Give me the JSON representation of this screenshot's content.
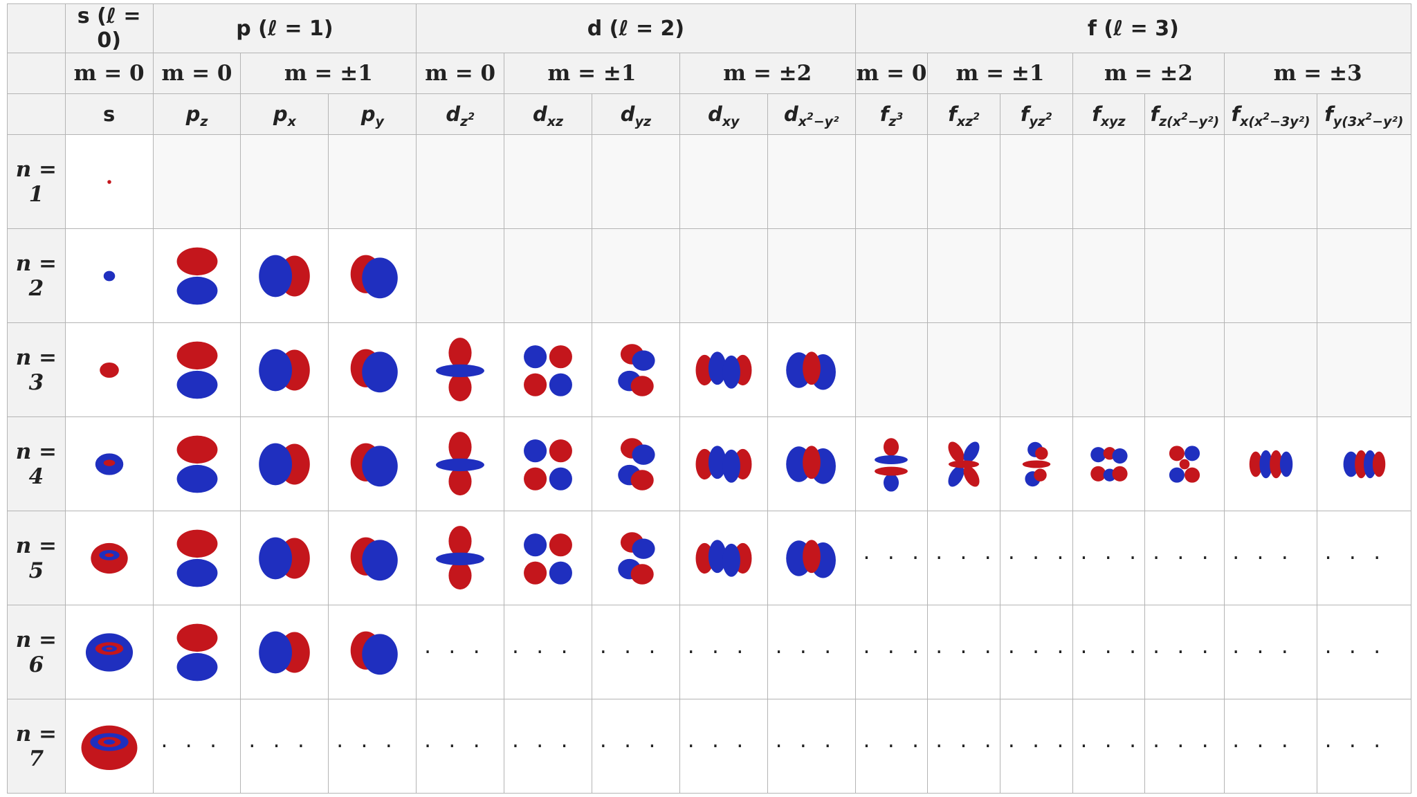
{
  "l_headers": [
    {
      "label": "s (ℓ = 0)",
      "span": 1
    },
    {
      "label": "p (ℓ = 1)",
      "span": 3
    },
    {
      "label": "d (ℓ = 2)",
      "span": 5
    },
    {
      "label": "f (ℓ = 3)",
      "span": 7
    }
  ],
  "m_headers": [
    {
      "label": "m = 0",
      "span": 1
    },
    {
      "label": "m = 0",
      "span": 1
    },
    {
      "label": "m = ±1",
      "span": 2
    },
    {
      "label": "m = 0",
      "span": 1
    },
    {
      "label": "m = ±1",
      "span": 2
    },
    {
      "label": "m = ±2",
      "span": 2
    },
    {
      "label": "m = 0",
      "span": 1
    },
    {
      "label": "m = ±1",
      "span": 2
    },
    {
      "label": "m = ±2",
      "span": 2
    },
    {
      "label": "m = ±3",
      "span": 2
    }
  ],
  "orbital_headers": [
    {
      "main": "s",
      "sub": "",
      "sup": "",
      "sub2": ""
    },
    {
      "main": "p",
      "sub": "z",
      "sup": "",
      "sub2": ""
    },
    {
      "main": "p",
      "sub": "x",
      "sup": "",
      "sub2": ""
    },
    {
      "main": "p",
      "sub": "y",
      "sup": "",
      "sub2": ""
    },
    {
      "main": "d",
      "sub": "z",
      "sup": "2",
      "sub2": ""
    },
    {
      "main": "d",
      "sub": "xz",
      "sup": "",
      "sub2": ""
    },
    {
      "main": "d",
      "sub": "yz",
      "sup": "",
      "sub2": ""
    },
    {
      "main": "d",
      "sub": "xy",
      "sup": "",
      "sub2": ""
    },
    {
      "main": "d",
      "sub": "x",
      "sup": "2",
      "sub2": "−y²"
    },
    {
      "main": "f",
      "sub": "z",
      "sup": "3",
      "sub2": ""
    },
    {
      "main": "f",
      "sub": "xz",
      "sup": "2",
      "sub2": ""
    },
    {
      "main": "f",
      "sub": "yz",
      "sup": "2",
      "sub2": ""
    },
    {
      "main": "f",
      "sub": "xyz",
      "sup": "",
      "sub2": ""
    },
    {
      "main": "f",
      "sub": "z(x",
      "sup": "2",
      "sub2": "−y²)"
    },
    {
      "main": "f",
      "sub": "x(x",
      "sup": "2",
      "sub2": "−3y²)"
    },
    {
      "main": "f",
      "sub": "y(3x",
      "sup": "2",
      "sub2": "−y²)"
    }
  ],
  "rows": [
    {
      "n": "n = 1",
      "cells": [
        "s1",
        "e",
        "e",
        "e",
        "e",
        "e",
        "e",
        "e",
        "e",
        "e",
        "e",
        "e",
        "e",
        "e",
        "e",
        "e"
      ]
    },
    {
      "n": "n = 2",
      "cells": [
        "s2",
        "pz",
        "px",
        "py",
        "e",
        "e",
        "e",
        "e",
        "e",
        "e",
        "e",
        "e",
        "e",
        "e",
        "e",
        "e"
      ]
    },
    {
      "n": "n = 3",
      "cells": [
        "s3",
        "pz",
        "px",
        "py",
        "dz2",
        "dxz",
        "dyz",
        "dxy",
        "dx2",
        "e",
        "e",
        "e",
        "e",
        "e",
        "e",
        "e"
      ]
    },
    {
      "n": "n = 4",
      "cells": [
        "s4",
        "pz",
        "px",
        "py",
        "dz2",
        "dxz",
        "dyz",
        "dxy",
        "dx2",
        "fz3",
        "fxz2",
        "fyz2",
        "fxyz",
        "fzx",
        "fxx",
        "fyx"
      ]
    },
    {
      "n": "n = 5",
      "cells": [
        "s5",
        "pz",
        "px",
        "py",
        "dz2",
        "dxz",
        "dyz",
        "dxy",
        "dx2",
        "…",
        "…",
        "…",
        "…",
        "…",
        "…",
        "…"
      ]
    },
    {
      "n": "n = 6",
      "cells": [
        "s6",
        "pz",
        "px",
        "py",
        "…",
        "…",
        "…",
        "…",
        "…",
        "…",
        "…",
        "…",
        "…",
        "…",
        "…",
        "…"
      ]
    },
    {
      "n": "n = 7",
      "cells": [
        "s7",
        "…",
        "…",
        "…",
        "…",
        "…",
        "…",
        "…",
        "…",
        "…",
        "…",
        "…",
        "…",
        "…",
        "…",
        "…"
      ]
    }
  ],
  "ellipsis": "· · ·",
  "colors": {
    "positive_lobe": "#c4161c",
    "negative_lobe": "#1f2fbf",
    "grid": "#b4b4b4",
    "header_bg": "#f2f2f2"
  }
}
